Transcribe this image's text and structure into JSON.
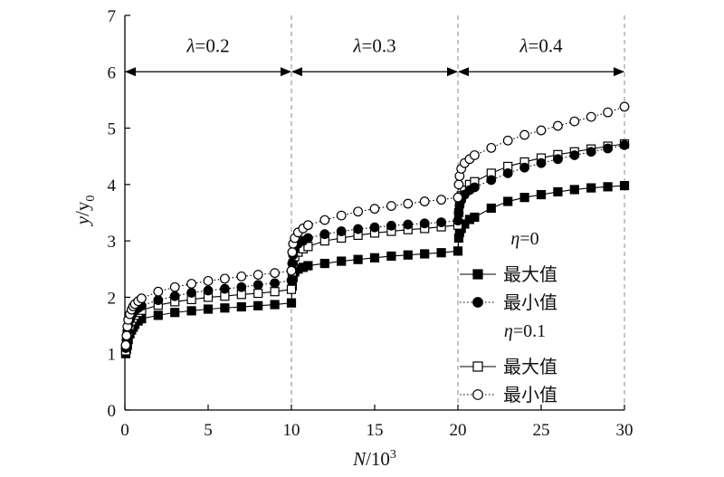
{
  "chart_data": {
    "type": "line",
    "xlabel_main": "N",
    "xlabel_sep": "/10",
    "xlabel_sup": "3",
    "ylabel_main": "y",
    "ylabel_sep": "/y",
    "ylabel_sub": "0",
    "xlim": [
      0,
      30
    ],
    "ylim": [
      0,
      7
    ],
    "xticks": [
      0,
      5,
      10,
      15,
      20,
      25,
      30
    ],
    "yticks": [
      0,
      1,
      2,
      3,
      4,
      5,
      6,
      7
    ],
    "xtick_labels": [
      "0",
      "5",
      "10",
      "15",
      "20",
      "25",
      "30"
    ],
    "ytick_labels": [
      "0",
      "1",
      "2",
      "3",
      "4",
      "5",
      "6",
      "7"
    ],
    "grid": false,
    "regions": [
      {
        "from": 0,
        "to": 10,
        "symbol": "λ",
        "value_text": "=0.2"
      },
      {
        "from": 10,
        "to": 20,
        "symbol": "λ",
        "value_text": "=0.3"
      },
      {
        "from": 20,
        "to": 30,
        "symbol": "λ",
        "value_text": "=0.4"
      }
    ],
    "dividers": [
      10,
      20,
      30
    ],
    "legend": {
      "placement": "right",
      "groups": [
        {
          "symbol": "η",
          "value_text": "=0"
        },
        {
          "symbol": "η",
          "value_text": "=0.1"
        }
      ]
    },
    "series": [
      {
        "name": "最大值",
        "group": 0,
        "marker": "square",
        "fill": "#000000",
        "line": "solid",
        "x": [
          0.05,
          0.1,
          0.15,
          0.2,
          0.3,
          0.4,
          0.5,
          0.6,
          0.8,
          1.0,
          2.0,
          3.0,
          4.0,
          5.0,
          6.0,
          7.0,
          8.0,
          9.0,
          10.0,
          10.05,
          10.1,
          10.2,
          10.4,
          10.7,
          11.0,
          12.0,
          13.0,
          14.0,
          15.0,
          16.0,
          17.0,
          18.0,
          19.0,
          20.0,
          20.05,
          20.1,
          20.2,
          20.4,
          20.7,
          21.0,
          22.0,
          23.0,
          24.0,
          25.0,
          26.0,
          27.0,
          28.0,
          29.0,
          30.0
        ],
        "y": [
          1.0,
          1.08,
          1.15,
          1.25,
          1.35,
          1.42,
          1.47,
          1.52,
          1.58,
          1.62,
          1.68,
          1.73,
          1.76,
          1.79,
          1.81,
          1.83,
          1.85,
          1.87,
          1.9,
          2.2,
          2.35,
          2.45,
          2.5,
          2.53,
          2.56,
          2.6,
          2.64,
          2.67,
          2.7,
          2.73,
          2.75,
          2.77,
          2.79,
          2.82,
          3.05,
          3.15,
          3.22,
          3.3,
          3.38,
          3.42,
          3.58,
          3.7,
          3.77,
          3.82,
          3.87,
          3.91,
          3.94,
          3.96,
          3.98
        ]
      },
      {
        "name": "最小值",
        "group": 0,
        "marker": "circle",
        "fill": "#000000",
        "line": "dotted",
        "x": [
          0.05,
          0.1,
          0.15,
          0.2,
          0.3,
          0.4,
          0.5,
          0.6,
          0.8,
          1.0,
          2.0,
          3.0,
          4.0,
          5.0,
          6.0,
          7.0,
          8.0,
          9.0,
          10.0,
          10.05,
          10.1,
          10.2,
          10.4,
          10.7,
          11.0,
          12.0,
          13.0,
          14.0,
          15.0,
          16.0,
          17.0,
          18.0,
          19.0,
          20.0,
          20.05,
          20.1,
          20.2,
          20.4,
          20.7,
          21.0,
          22.0,
          23.0,
          24.0,
          25.0,
          26.0,
          27.0,
          28.0,
          29.0,
          30.0
        ],
        "y": [
          1.1,
          1.25,
          1.4,
          1.5,
          1.6,
          1.68,
          1.73,
          1.77,
          1.81,
          1.85,
          1.95,
          2.02,
          2.08,
          2.12,
          2.15,
          2.18,
          2.22,
          2.25,
          2.3,
          2.6,
          2.75,
          2.85,
          2.95,
          3.0,
          3.05,
          3.12,
          3.17,
          3.21,
          3.24,
          3.27,
          3.29,
          3.31,
          3.33,
          3.36,
          3.5,
          3.62,
          3.72,
          3.82,
          3.9,
          3.95,
          4.08,
          4.2,
          4.3,
          4.38,
          4.45,
          4.52,
          4.58,
          4.64,
          4.7
        ]
      },
      {
        "name": "最大值",
        "group": 1,
        "marker": "square",
        "fill": "#ffffff",
        "line": "solid",
        "x": [
          0.05,
          0.1,
          0.15,
          0.2,
          0.3,
          0.4,
          0.5,
          0.6,
          0.8,
          1.0,
          2.0,
          3.0,
          4.0,
          5.0,
          6.0,
          7.0,
          8.0,
          9.0,
          10.0,
          10.05,
          10.1,
          10.2,
          10.4,
          10.7,
          11.0,
          12.0,
          13.0,
          14.0,
          15.0,
          16.0,
          17.0,
          18.0,
          19.0,
          20.0,
          20.05,
          20.1,
          20.2,
          20.4,
          20.7,
          21.0,
          22.0,
          23.0,
          24.0,
          25.0,
          26.0,
          27.0,
          28.0,
          29.0,
          30.0
        ],
        "y": [
          1.05,
          1.18,
          1.3,
          1.4,
          1.5,
          1.58,
          1.63,
          1.68,
          1.73,
          1.77,
          1.86,
          1.92,
          1.96,
          2.0,
          2.02,
          2.05,
          2.07,
          2.1,
          2.14,
          2.45,
          2.6,
          2.72,
          2.8,
          2.86,
          2.9,
          3.0,
          3.05,
          3.1,
          3.14,
          3.17,
          3.2,
          3.22,
          3.25,
          3.28,
          3.5,
          3.68,
          3.8,
          3.9,
          4.0,
          4.05,
          4.2,
          4.32,
          4.4,
          4.47,
          4.53,
          4.58,
          4.63,
          4.68,
          4.72
        ]
      },
      {
        "name": "最小值",
        "group": 1,
        "marker": "circle",
        "fill": "#ffffff",
        "line": "dotted",
        "x": [
          0.05,
          0.1,
          0.15,
          0.2,
          0.3,
          0.4,
          0.5,
          0.6,
          0.8,
          1.0,
          2.0,
          3.0,
          4.0,
          5.0,
          6.0,
          7.0,
          8.0,
          9.0,
          10.0,
          10.05,
          10.1,
          10.2,
          10.4,
          10.7,
          11.0,
          12.0,
          13.0,
          14.0,
          15.0,
          16.0,
          17.0,
          18.0,
          19.0,
          20.0,
          20.05,
          20.1,
          20.2,
          20.4,
          20.7,
          21.0,
          22.0,
          23.0,
          24.0,
          25.0,
          26.0,
          27.0,
          28.0,
          29.0,
          30.0
        ],
        "y": [
          1.15,
          1.32,
          1.48,
          1.6,
          1.7,
          1.78,
          1.84,
          1.88,
          1.93,
          1.98,
          2.1,
          2.18,
          2.24,
          2.29,
          2.33,
          2.37,
          2.4,
          2.43,
          2.47,
          2.8,
          2.95,
          3.05,
          3.15,
          3.22,
          3.28,
          3.37,
          3.45,
          3.52,
          3.57,
          3.62,
          3.66,
          3.7,
          3.73,
          3.77,
          4.0,
          4.15,
          4.28,
          4.38,
          4.45,
          4.52,
          4.65,
          4.78,
          4.88,
          4.96,
          5.04,
          5.12,
          5.2,
          5.28,
          5.38
        ]
      }
    ]
  }
}
